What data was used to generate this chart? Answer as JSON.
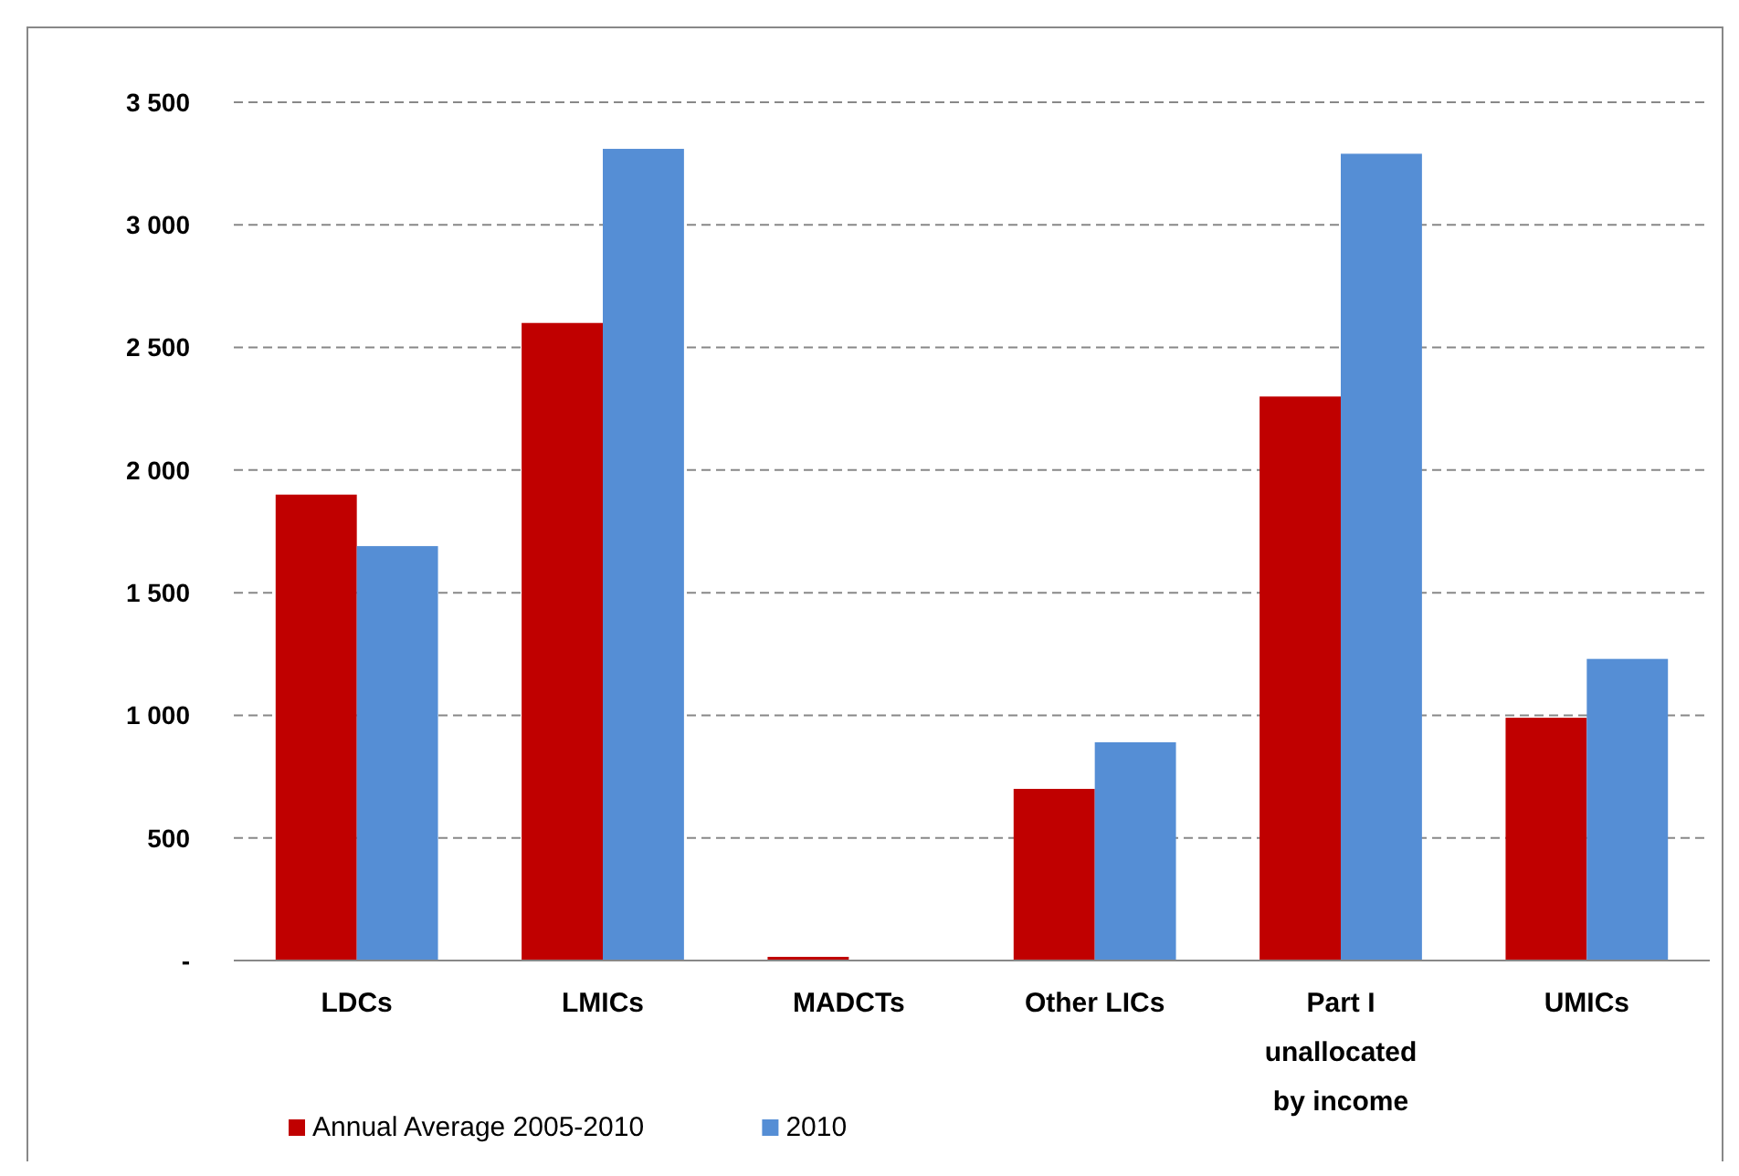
{
  "chart_data": {
    "type": "bar",
    "categories": [
      "LDCs",
      "LMICs",
      "MADCTs",
      "Other LICs",
      "Part I unallocated by income",
      "UMICs"
    ],
    "series": [
      {
        "name": "Annual Average 2005-2010",
        "color": "#c00000",
        "values": [
          1900,
          2600,
          15,
          700,
          2300,
          990
        ]
      },
      {
        "name": "2010",
        "color": "#558ed5",
        "values": [
          1690,
          3310,
          0,
          890,
          3290,
          1230
        ]
      }
    ],
    "ylim": [
      0,
      3500
    ],
    "yticks": [
      {
        "value": 0,
        "label": "-"
      },
      {
        "value": 500,
        "label": "500"
      },
      {
        "value": 1000,
        "label": "1 000"
      },
      {
        "value": 1500,
        "label": "1 500"
      },
      {
        "value": 2000,
        "label": "2 000"
      },
      {
        "value": 2500,
        "label": "2 500"
      },
      {
        "value": 3000,
        "label": "3 000"
      },
      {
        "value": 3500,
        "label": "3 500"
      }
    ],
    "grid": "y",
    "legend": "bottom left"
  }
}
